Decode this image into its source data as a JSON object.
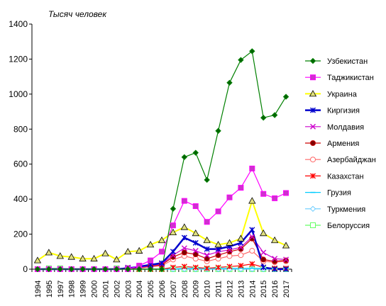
{
  "chart_data": {
    "type": "line",
    "unit_label": "Тысяч человек",
    "ylim": [
      0,
      1400
    ],
    "yticks": [
      0,
      200,
      400,
      600,
      800,
      1000,
      1200,
      1400
    ],
    "grid": false,
    "legend_position": "right",
    "x": [
      "1994",
      "1995",
      "1997",
      "1998",
      "1999",
      "2000",
      "2001",
      "2002",
      "2003",
      "2004",
      "2005",
      "2006",
      "2007",
      "2008",
      "2009",
      "2010",
      "2011",
      "2012",
      "2013",
      "2014",
      "2015",
      "2016",
      "2017"
    ],
    "series": [
      {
        "name": "Узбекистан",
        "color": "#008000",
        "marker": "diamond",
        "marker_fill": "#006400",
        "values": [
          0,
          0,
          0,
          0,
          0,
          0,
          0,
          0,
          0,
          0,
          0,
          0,
          345,
          640,
          665,
          510,
          790,
          1065,
          1195,
          1245,
          865,
          880,
          985
        ]
      },
      {
        "name": "Таджикистан",
        "color": "#ff00ff",
        "marker": "square",
        "marker_fill": "#cc33cc",
        "values": [
          0,
          0,
          0,
          0,
          0,
          0,
          0,
          0,
          0,
          20,
          50,
          100,
          250,
          390,
          360,
          270,
          330,
          410,
          465,
          575,
          430,
          405,
          435
        ]
      },
      {
        "name": "Украина",
        "color": "#ffff00",
        "marker": "triangle",
        "marker_fill": "#e0e080",
        "values": [
          50,
          95,
          75,
          70,
          60,
          60,
          90,
          55,
          100,
          105,
          140,
          165,
          210,
          240,
          205,
          165,
          140,
          150,
          175,
          390,
          205,
          165,
          135
        ]
      },
      {
        "name": "Киргизия",
        "color": "#0000cc",
        "marker": "star",
        "marker_fill": "#0000cc",
        "values": [
          0,
          0,
          0,
          0,
          0,
          0,
          0,
          0,
          5,
          15,
          25,
          35,
          100,
          180,
          150,
          115,
          115,
          130,
          150,
          225,
          10,
          0,
          0
        ]
      },
      {
        "name": "Молдавия",
        "color": "#cc00cc",
        "marker": "x",
        "marker_fill": "#800080",
        "values": [
          0,
          0,
          0,
          0,
          0,
          0,
          0,
          0,
          10,
          10,
          20,
          30,
          80,
          120,
          105,
          80,
          100,
          110,
          125,
          185,
          95,
          60,
          55
        ]
      },
      {
        "name": "Армения",
        "color": "#cc0000",
        "marker": "circle",
        "marker_fill": "#800000",
        "values": [
          0,
          0,
          0,
          0,
          0,
          0,
          0,
          0,
          5,
          10,
          15,
          25,
          70,
          95,
          85,
          60,
          80,
          100,
          115,
          175,
          55,
          45,
          50
        ]
      },
      {
        "name": "Азербайджан",
        "color": "#ff6666",
        "marker": "circle",
        "marker_fill": "#ffffff",
        "values": [
          0,
          0,
          0,
          0,
          0,
          0,
          0,
          0,
          3,
          5,
          15,
          20,
          55,
          75,
          60,
          45,
          60,
          75,
          80,
          105,
          45,
          40,
          45
        ]
      },
      {
        "name": "Казахстан",
        "color": "#ff0000",
        "marker": "star",
        "marker_fill": "#ff0000",
        "values": [
          0,
          0,
          0,
          0,
          0,
          0,
          0,
          0,
          0,
          0,
          0,
          0,
          10,
          15,
          10,
          5,
          10,
          15,
          20,
          30,
          10,
          5,
          5
        ]
      },
      {
        "name": "Грузия",
        "color": "#00ccff",
        "marker": "dash",
        "marker_fill": "#00ccff",
        "values": [
          0,
          0,
          0,
          0,
          0,
          0,
          0,
          0,
          0,
          0,
          0,
          0,
          0,
          5,
          5,
          5,
          5,
          5,
          5,
          5,
          5,
          5,
          5
        ]
      },
      {
        "name": "Туркмения",
        "color": "#66ccff",
        "marker": "diamond",
        "marker_fill": "#ffffff",
        "values": [
          0,
          0,
          0,
          0,
          0,
          0,
          0,
          0,
          0,
          0,
          0,
          0,
          0,
          0,
          0,
          0,
          0,
          0,
          0,
          0,
          0,
          0,
          0
        ]
      },
      {
        "name": "Белоруссия",
        "color": "#66ff66",
        "marker": "square",
        "marker_fill": "#ffffff",
        "values": [
          0,
          5,
          5,
          0,
          0,
          0,
          0,
          5,
          0,
          0,
          0,
          0,
          0,
          0,
          0,
          0,
          0,
          0,
          0,
          0,
          0,
          0,
          0
        ]
      }
    ]
  }
}
